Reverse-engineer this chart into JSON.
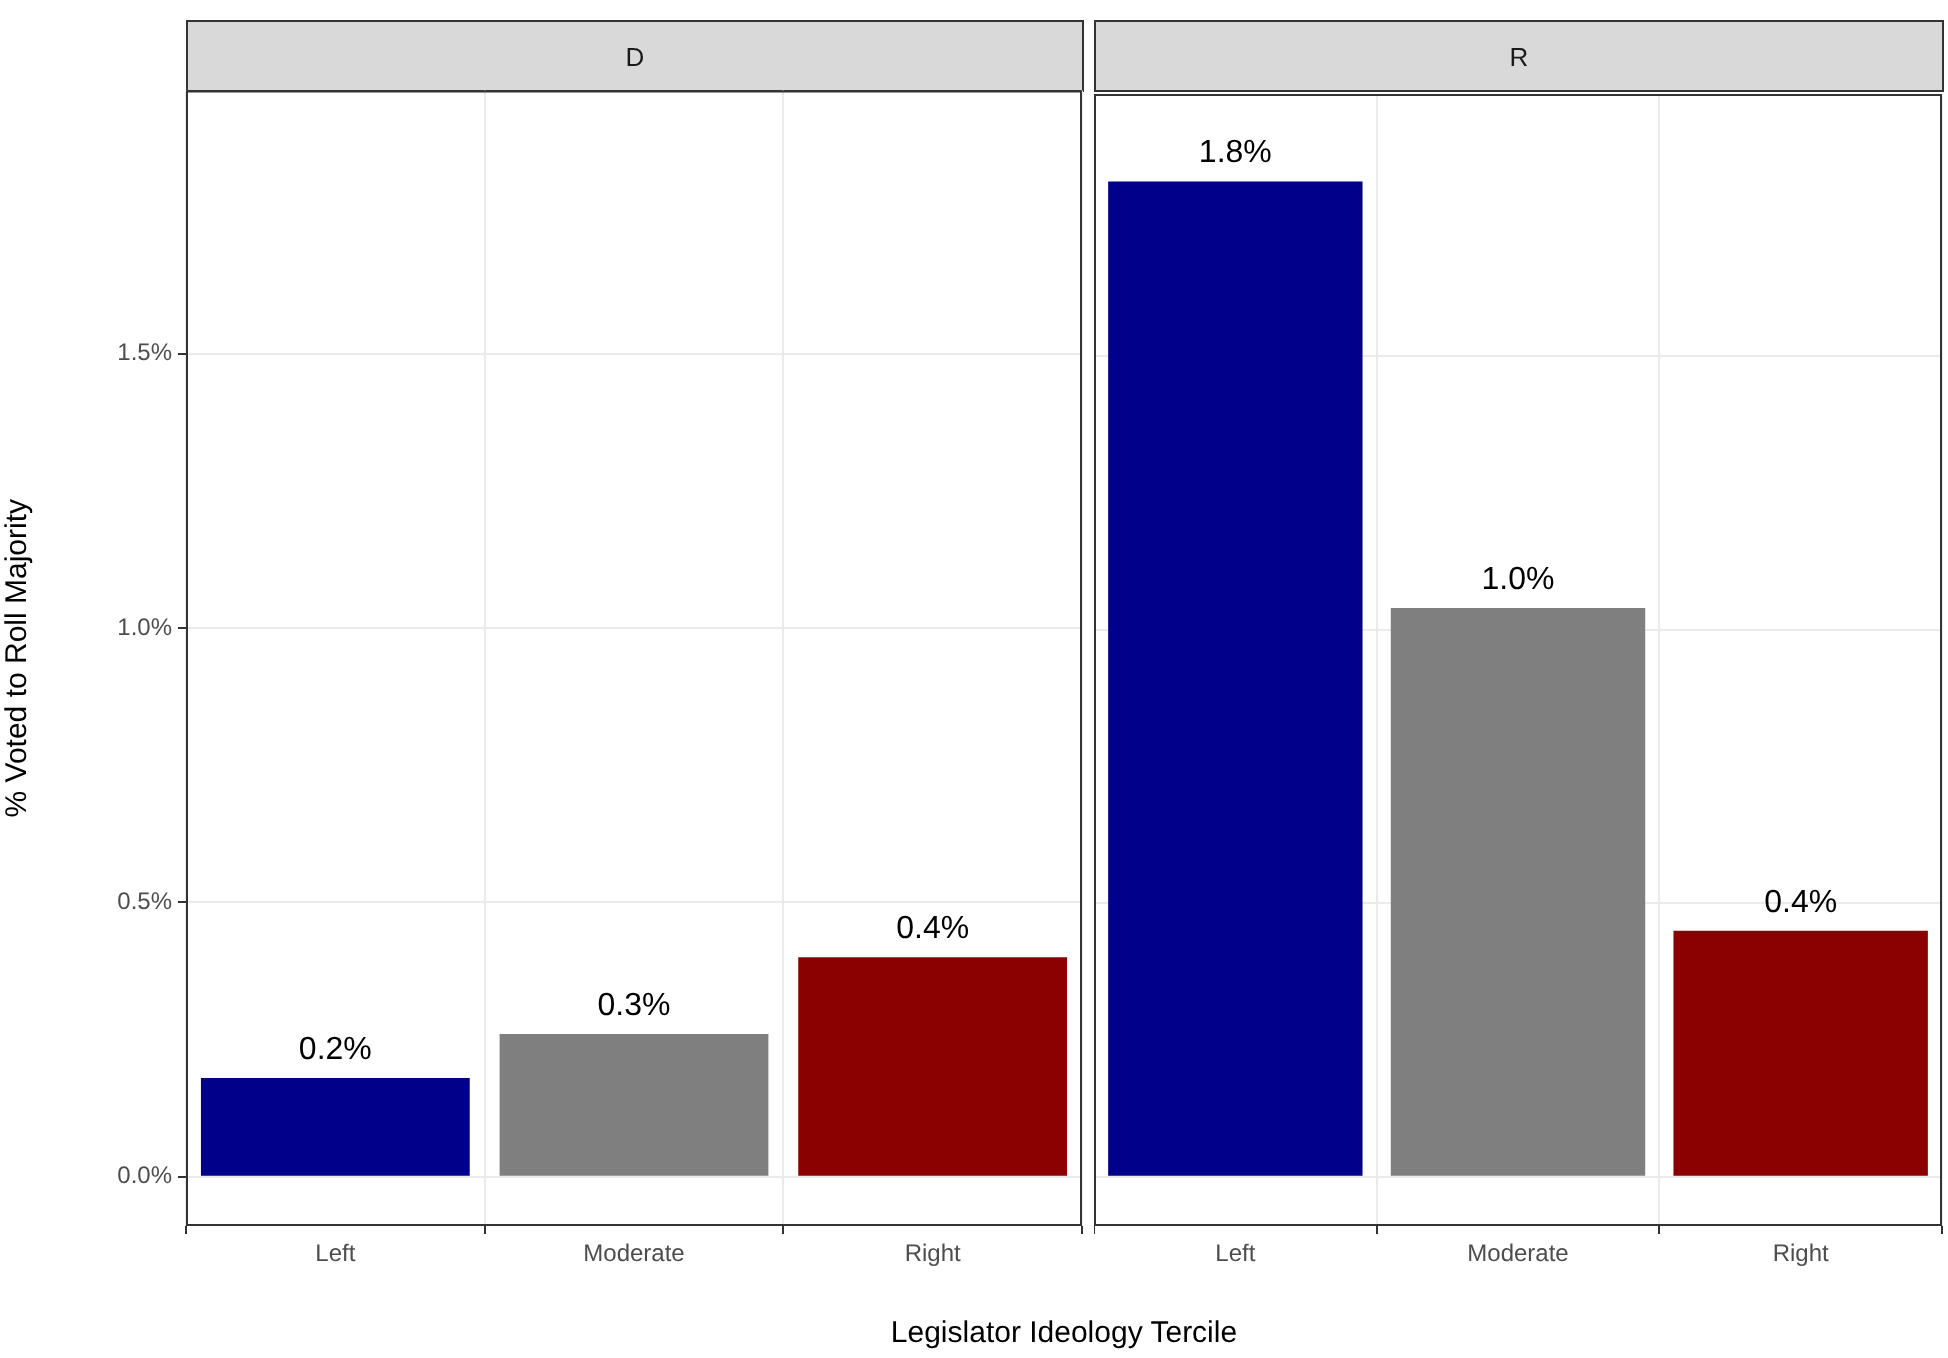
{
  "chart_data": [
    {
      "type": "bar",
      "title": "D",
      "xlabel": "Legislator Ideology Tercile",
      "ylabel": "% Voted to Roll Majority",
      "categories": [
        "Left",
        "Moderate",
        "Right"
      ],
      "values": [
        0.18,
        0.26,
        0.4
      ],
      "colors": [
        "#00008b",
        "#7f7f7f",
        "#8b0000"
      ],
      "value_labels": [
        "0.2%",
        "0.3%",
        "0.4%"
      ],
      "ylim": [
        -0.09,
        1.98
      ],
      "yticks": [
        {
          "value": 0,
          "label": "0.0%"
        },
        {
          "value": 0.5,
          "label": "0.5%"
        },
        {
          "value": 1,
          "label": "1.0%"
        },
        {
          "value": 1.5,
          "label": "1.5%"
        }
      ],
      "grid": true
    },
    {
      "type": "bar",
      "title": "R",
      "categories": [
        "Left",
        "Moderate",
        "Right"
      ],
      "values": [
        1.82,
        1.04,
        0.45
      ],
      "colors": [
        "#00008b",
        "#7f7f7f",
        "#8b0000"
      ],
      "value_labels": [
        "1.8%",
        "1.0%",
        "0.4%"
      ],
      "ylim": [
        -0.09,
        1.98
      ],
      "yticks": [
        0,
        0.5,
        1,
        1.5
      ],
      "grid": true,
      "tick_labels": "x"
    }
  ]
}
